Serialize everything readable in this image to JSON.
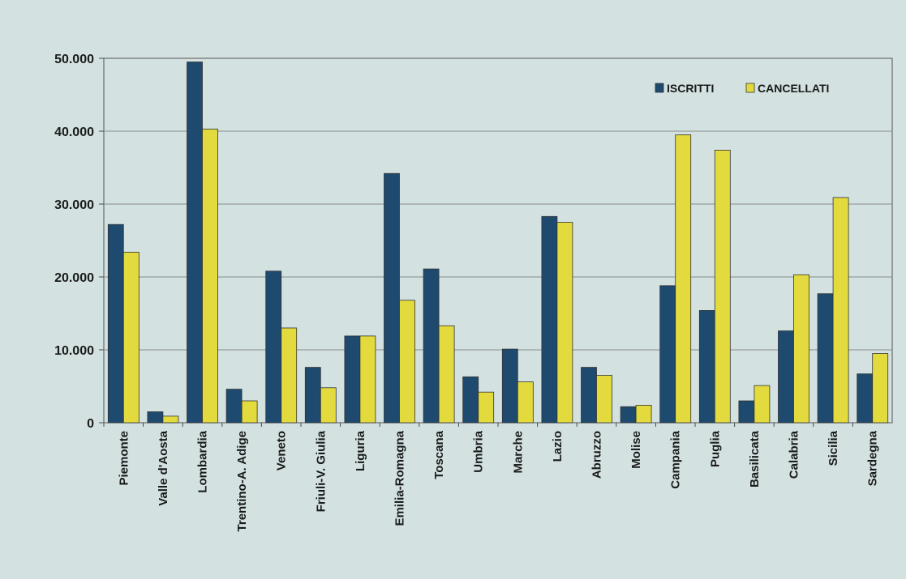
{
  "chart_data": {
    "type": "bar",
    "categories": [
      "Piemonte",
      "Valle d'Aosta",
      "Lombardia",
      "Trentino-A. Adige",
      "Veneto",
      "Friuli-V. Giulia",
      "Liguria",
      "Emilia-Romagna",
      "Toscana",
      "Umbria",
      "Marche",
      "Lazio",
      "Abruzzo",
      "Molise",
      "Campania",
      "Puglia",
      "Basilicata",
      "Calabria",
      "Sicilia",
      "Sardegna"
    ],
    "series": [
      {
        "name": "ISCRITTI",
        "color": "#1d4a6e",
        "values": [
          27200,
          1500,
          49500,
          4600,
          20800,
          7600,
          11900,
          34200,
          21100,
          6300,
          10100,
          28300,
          7600,
          2200,
          18800,
          15400,
          3000,
          12600,
          17700,
          6700
        ]
      },
      {
        "name": "CANCELLATI",
        "color": "#e3da3e",
        "values": [
          23400,
          900,
          40300,
          3000,
          13000,
          4800,
          11900,
          16800,
          13300,
          4200,
          5600,
          27500,
          6500,
          2400,
          39500,
          37400,
          5100,
          20300,
          30900,
          9500
        ]
      }
    ],
    "yticks": [
      "0",
      "10.000",
      "20.000",
      "30.000",
      "40.000",
      "50.000"
    ],
    "ylim": [
      0,
      50000
    ],
    "grid": true,
    "legend_position": "top-right",
    "xlabel": "",
    "ylabel": "",
    "title": ""
  }
}
